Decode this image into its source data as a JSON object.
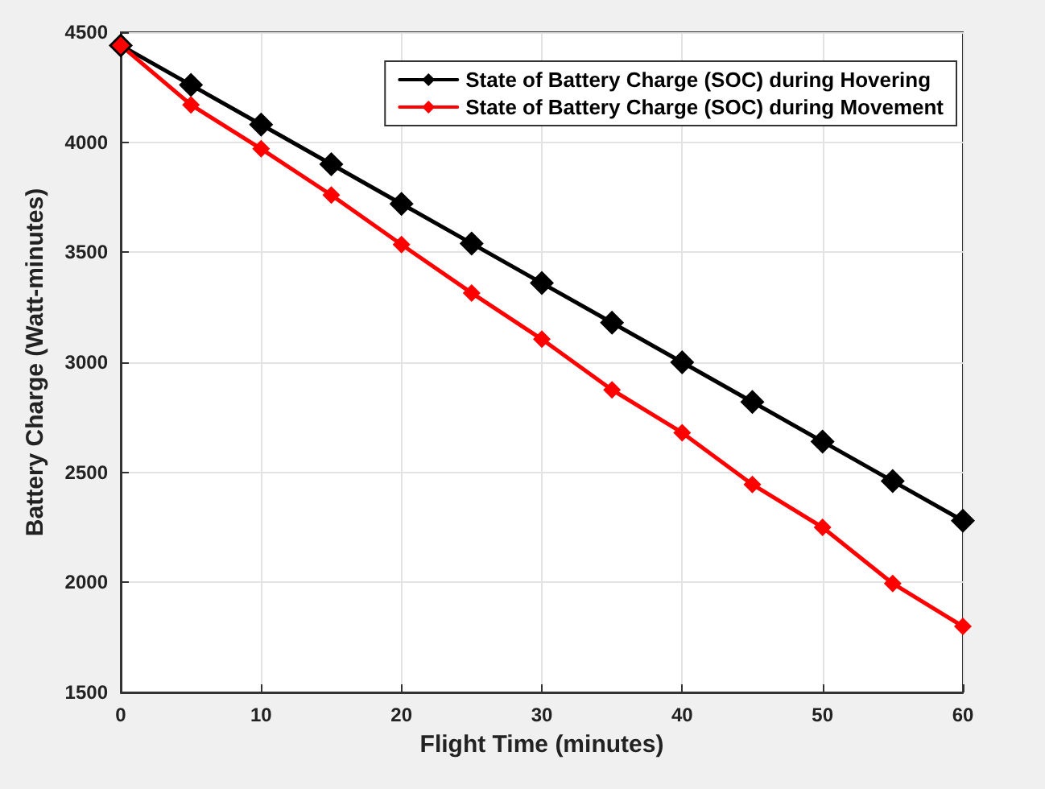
{
  "chart_data": {
    "type": "line",
    "xlabel": "Flight Time (minutes)",
    "ylabel": "Battery Charge (Watt-minutes)",
    "x": [
      0,
      5,
      10,
      15,
      20,
      25,
      30,
      35,
      40,
      45,
      50,
      55,
      60
    ],
    "series": [
      {
        "name": "State of Battery Charge (SOC) during Hovering",
        "color": "#000000",
        "values": [
          4440,
          4260,
          4080,
          3900,
          3720,
          3540,
          3360,
          3180,
          3000,
          2820,
          2640,
          2460,
          2280
        ]
      },
      {
        "name": "State of Battery Charge (SOC) during Movement",
        "color": "#ff0000",
        "values": [
          4440,
          4170,
          3970,
          3760,
          3535,
          3315,
          3105,
          2875,
          2680,
          2445,
          2250,
          1995,
          1800
        ]
      }
    ],
    "xlim": [
      0,
      60
    ],
    "xticks": [
      0,
      10,
      20,
      30,
      40,
      50,
      60
    ],
    "ylim": [
      1500,
      4500
    ],
    "yticks": [
      1500,
      2000,
      2500,
      3000,
      3500,
      4000,
      4500
    ],
    "grid": true,
    "legend": "top right",
    "marker": "diamond",
    "line_style": "solid"
  }
}
